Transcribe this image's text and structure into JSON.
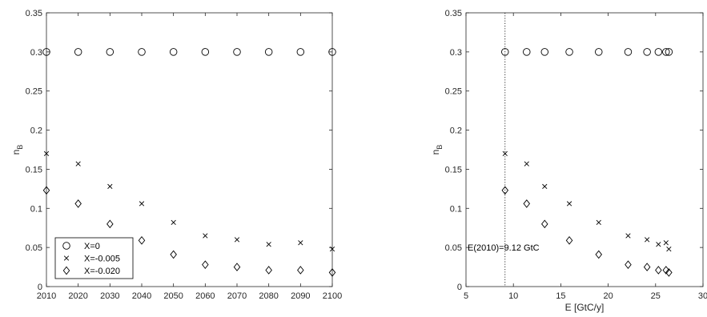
{
  "chart_data": [
    {
      "type": "scatter",
      "title": "",
      "xlabel": "",
      "ylabel": "n_B",
      "ylabel_main": "n",
      "ylabel_sub": "B",
      "xlim": [
        2010,
        2100
      ],
      "ylim": [
        0,
        0.35
      ],
      "xticks": [
        "2010",
        "2020",
        "2030",
        "2040",
        "2050",
        "2060",
        "2070",
        "2080",
        "2090",
        "2100"
      ],
      "yticks": [
        "0",
        "0.05",
        "0.1",
        "0.15",
        "0.2",
        "0.25",
        "0.3",
        "0.35"
      ],
      "x": [
        2010,
        2020,
        2030,
        2040,
        2050,
        2060,
        2070,
        2080,
        2090,
        2100
      ],
      "legend": {
        "placement": "bottom-left",
        "entries": [
          "X=0",
          "X=-0.005",
          "X=-0.020"
        ]
      },
      "series": [
        {
          "name": "X=0",
          "marker": "circle",
          "values": [
            0.3,
            0.3,
            0.3,
            0.3,
            0.3,
            0.3,
            0.3,
            0.3,
            0.3,
            0.3
          ]
        },
        {
          "name": "X=-0.005",
          "marker": "x",
          "values": [
            0.17,
            0.157,
            0.128,
            0.106,
            0.082,
            0.065,
            0.06,
            0.054,
            0.056,
            0.048
          ]
        },
        {
          "name": "X=-0.020",
          "marker": "diamond",
          "values": [
            0.123,
            0.106,
            0.08,
            0.059,
            0.041,
            0.028,
            0.025,
            0.021,
            0.021,
            0.018
          ]
        }
      ],
      "grid": false
    },
    {
      "type": "scatter",
      "title": "",
      "xlabel": "E [GtC/y]",
      "ylabel": "n_B",
      "ylabel_main": "n",
      "ylabel_sub": "B",
      "xlim": [
        5,
        30
      ],
      "ylim": [
        0,
        0.35
      ],
      "xticks": [
        "5",
        "10",
        "15",
        "20",
        "25",
        "30"
      ],
      "yticks": [
        "0",
        "0.05",
        "0.1",
        "0.15",
        "0.2",
        "0.25",
        "0.3",
        "0.35"
      ],
      "x": [
        9.12,
        11.4,
        13.3,
        15.9,
        19.0,
        22.1,
        24.1,
        25.3,
        26.1,
        26.4
      ],
      "vline": {
        "x": 9.12,
        "style": "dotted",
        "label": "E(2010)=9.12 GtC"
      },
      "series": [
        {
          "name": "X=0",
          "marker": "circle",
          "values": [
            0.3,
            0.3,
            0.3,
            0.3,
            0.3,
            0.3,
            0.3,
            0.3,
            0.3,
            0.3
          ]
        },
        {
          "name": "X=-0.005",
          "marker": "x",
          "values": [
            0.17,
            0.157,
            0.128,
            0.106,
            0.082,
            0.065,
            0.06,
            0.054,
            0.056,
            0.048
          ]
        },
        {
          "name": "X=-0.020",
          "marker": "diamond",
          "values": [
            0.123,
            0.106,
            0.08,
            0.059,
            0.041,
            0.028,
            0.025,
            0.021,
            0.021,
            0.018
          ]
        }
      ],
      "grid": false
    }
  ]
}
